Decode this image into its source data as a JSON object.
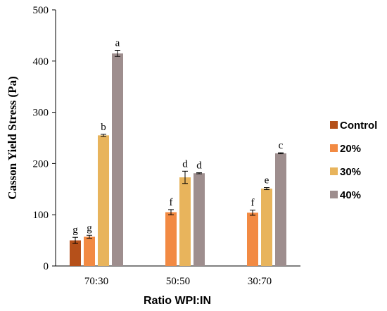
{
  "chart_data": {
    "type": "bar",
    "ylabel": "Casson Yield Stress (Pa)",
    "xlabel": "Ratio WPI:IN",
    "ylim": [
      0,
      500
    ],
    "yticks": [
      0,
      100,
      200,
      300,
      400,
      500
    ],
    "categories": [
      "70:30",
      "50:50",
      "30:70"
    ],
    "legend_position": "right",
    "series": [
      {
        "name": "Control",
        "color": "#B5501A",
        "values": [
          50,
          null,
          null
        ],
        "errors": [
          6,
          null,
          null
        ],
        "letters": [
          "g",
          null,
          null
        ]
      },
      {
        "name": "20%",
        "color": "#F28A43",
        "values": [
          57,
          105,
          104
        ],
        "errors": [
          3,
          5,
          5
        ],
        "letters": [
          "g",
          "f",
          "f"
        ]
      },
      {
        "name": "30%",
        "color": "#E8B45C",
        "values": [
          255,
          173,
          151
        ],
        "errors": [
          2,
          12,
          2
        ],
        "letters": [
          "b",
          "d",
          "e"
        ]
      },
      {
        "name": "40%",
        "color": "#9E8E8E",
        "values": [
          415,
          181,
          220
        ],
        "errors": [
          6,
          1,
          1
        ],
        "letters": [
          "a",
          "d",
          "c"
        ]
      }
    ]
  }
}
